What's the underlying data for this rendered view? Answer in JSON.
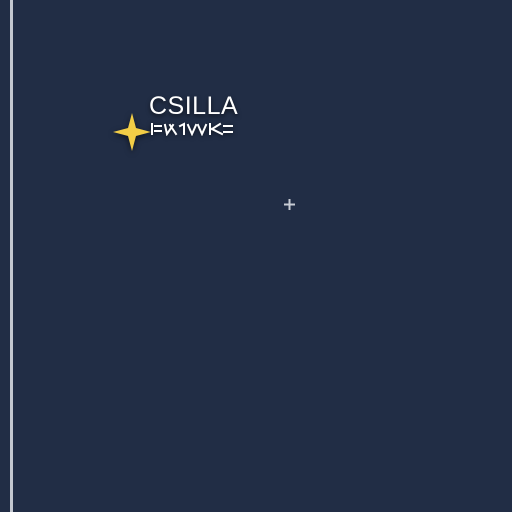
{
  "map": {
    "background_color": "#212d45",
    "edge_line_color": "#c3c7cf",
    "location": {
      "name": "CSILLA",
      "name_script": "CSILLA",
      "marker_icon": "four-point-star-icon",
      "marker_color": "#f2cd46",
      "label_color": "#ffffff"
    },
    "center_marker_icon": "crosshair-plus-icon",
    "center_marker_color": "#c8ccd4"
  }
}
